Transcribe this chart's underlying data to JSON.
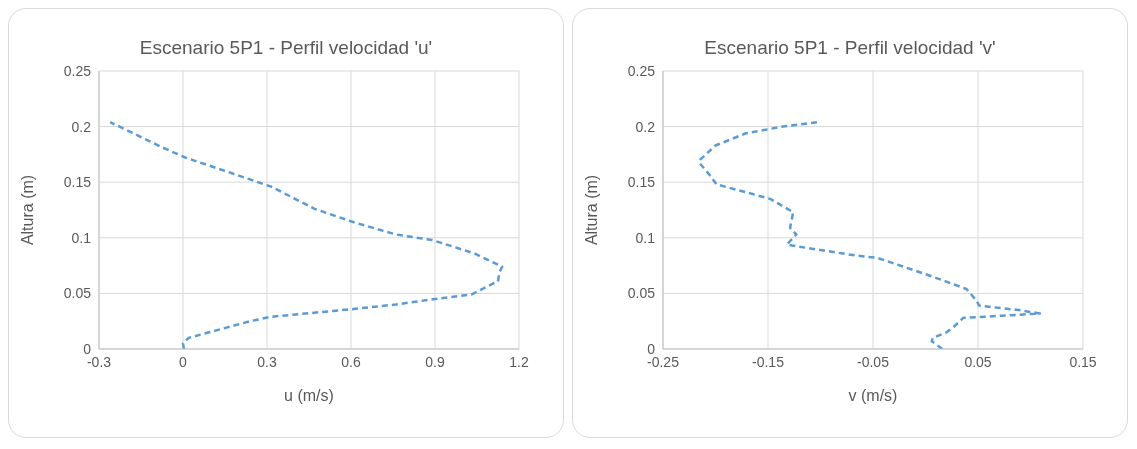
{
  "chart_data": [
    {
      "type": "line",
      "title": "Escenario 5P1 - Perfil velocidad 'u'",
      "xlabel": "u (m/s)",
      "ylabel": "Altura (m)",
      "xlim": [
        -0.3,
        1.2
      ],
      "xticks": [
        -0.3,
        0,
        0.3,
        0.6,
        0.9,
        1.2
      ],
      "ylim": [
        0,
        0.25
      ],
      "yticks": [
        0,
        0.05,
        0.1,
        0.15,
        0.2,
        0.25
      ],
      "grid": true,
      "legend": false,
      "marker": "none",
      "line_style": "dashed",
      "series": [
        {
          "color": "#5b9bd5",
          "x": [
            0.003,
            0,
            0.02,
            0.24,
            0.315,
            0.61,
            0.76,
            0.9,
            1.03,
            1.125,
            1.13,
            1.14,
            1.04,
            0.89,
            0.76,
            0.61,
            0.47,
            0.315,
            0.175,
            0.01,
            -0.08,
            -0.26
          ],
          "values": [
            0,
            0.005,
            0.01,
            0.025,
            0.029,
            0.036,
            0.04,
            0.045,
            0.049,
            0.061,
            0.069,
            0.074,
            0.086,
            0.098,
            0.103,
            0.114,
            0.126,
            0.146,
            0.158,
            0.172,
            0.182,
            0.204
          ]
        }
      ]
    },
    {
      "type": "line",
      "title": "Escenario 5P1 - Perfil velocidad 'v'",
      "xlabel": "v (m/s)",
      "ylabel": "Altura (m)",
      "xlim": [
        -0.25,
        0.15
      ],
      "xticks": [
        -0.25,
        -0.15,
        -0.05,
        0.05,
        0.15
      ],
      "ylim": [
        0,
        0.25
      ],
      "yticks": [
        0,
        0.05,
        0.1,
        0.15,
        0.2,
        0.25
      ],
      "grid": true,
      "legend": false,
      "marker": "none",
      "line_style": "dashed",
      "series": [
        {
          "color": "#5b9bd5",
          "x": [
            0.016,
            0.006,
            0.007,
            0.02,
            0.027,
            0.036,
            0.057,
            0.109,
            0.089,
            0.051,
            0.049,
            0.039,
            0.001,
            -0.046,
            -0.066,
            -0.127,
            -0.132,
            -0.123,
            -0.129,
            -0.126,
            -0.148,
            -0.171,
            -0.199,
            -0.206,
            -0.215,
            -0.215,
            -0.2,
            -0.171,
            -0.136,
            -0.103
          ],
          "values": [
            0,
            0.007,
            0.01,
            0.015,
            0.02,
            0.028,
            0.029,
            0.032,
            0.035,
            0.039,
            0.043,
            0.054,
            0.067,
            0.082,
            0.084,
            0.093,
            0.094,
            0.103,
            0.109,
            0.123,
            0.135,
            0.141,
            0.148,
            0.157,
            0.167,
            0.17,
            0.183,
            0.194,
            0.2,
            0.204
          ]
        }
      ]
    }
  ]
}
